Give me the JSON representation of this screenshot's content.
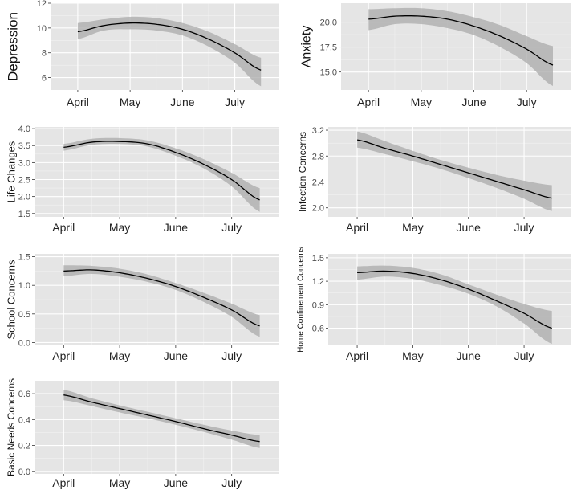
{
  "chart_data": [
    {
      "type": "line",
      "ylabel": "Depression",
      "x_ticks": [
        "April",
        "May",
        "June",
        "July"
      ],
      "y_ticks": [
        6,
        8,
        10,
        12
      ],
      "ylim": [
        5,
        12
      ],
      "grid": true,
      "series": [
        {
          "x": [
            0,
            0.5,
            1,
            1.5,
            2,
            2.5,
            3,
            3.5
          ],
          "y": [
            9.7,
            10.2,
            10.4,
            10.3,
            9.9,
            9.1,
            8.0,
            6.6
          ],
          "lower": [
            9.1,
            9.8,
            9.9,
            9.8,
            9.4,
            8.5,
            7.2,
            5.3
          ],
          "upper": [
            10.4,
            10.7,
            10.9,
            10.8,
            10.4,
            9.7,
            8.7,
            7.6
          ]
        }
      ]
    },
    {
      "type": "line",
      "ylabel": "Anxiety",
      "x_ticks": [
        "April",
        "May",
        "June",
        "July"
      ],
      "y_ticks": [
        15.0,
        17.5,
        20.0
      ],
      "y_tick_labels": [
        "15.0",
        "17.5",
        "20.0"
      ],
      "ylim": [
        13.2,
        21.9
      ],
      "grid": true,
      "series": [
        {
          "x": [
            0,
            0.5,
            1,
            1.5,
            2,
            2.5,
            3,
            3.5
          ],
          "y": [
            20.3,
            20.6,
            20.6,
            20.3,
            19.6,
            18.6,
            17.3,
            15.7
          ],
          "lower": [
            19.2,
            19.8,
            19.8,
            19.4,
            18.7,
            17.5,
            15.9,
            13.6
          ],
          "upper": [
            21.3,
            21.4,
            21.4,
            21.1,
            20.5,
            19.7,
            18.6,
            17.6
          ]
        }
      ]
    },
    {
      "type": "line",
      "ylabel": "Life Changes",
      "x_ticks": [
        "April",
        "May",
        "June",
        "July"
      ],
      "y_ticks": [
        1.5,
        2.0,
        2.5,
        3.0,
        3.5,
        4.0
      ],
      "y_tick_labels": [
        "1.5",
        "2.0",
        "2.5",
        "3.0",
        "3.5",
        "4.0"
      ],
      "ylim": [
        1.4,
        4.05
      ],
      "grid": true,
      "series": [
        {
          "x": [
            0,
            0.5,
            1,
            1.5,
            2,
            2.5,
            3,
            3.5
          ],
          "y": [
            3.45,
            3.6,
            3.62,
            3.55,
            3.3,
            2.95,
            2.5,
            1.9
          ],
          "lower": [
            3.35,
            3.52,
            3.55,
            3.47,
            3.2,
            2.83,
            2.3,
            1.55
          ],
          "upper": [
            3.55,
            3.7,
            3.72,
            3.65,
            3.42,
            3.1,
            2.7,
            2.25
          ]
        }
      ]
    },
    {
      "type": "line",
      "ylabel": "Infection Concerns",
      "x_ticks": [
        "April",
        "May",
        "June",
        "July"
      ],
      "y_ticks": [
        2.0,
        2.4,
        2.8,
        3.2
      ],
      "y_tick_labels": [
        "2.0",
        "2.4",
        "2.8",
        "3.2"
      ],
      "ylim": [
        1.86,
        3.25
      ],
      "grid": true,
      "series": [
        {
          "x": [
            0,
            0.5,
            1,
            1.5,
            2,
            2.5,
            3,
            3.5
          ],
          "y": [
            3.05,
            2.92,
            2.8,
            2.67,
            2.54,
            2.41,
            2.28,
            2.15
          ],
          "lower": [
            2.93,
            2.83,
            2.72,
            2.6,
            2.46,
            2.31,
            2.14,
            1.95
          ],
          "upper": [
            3.18,
            3.03,
            2.88,
            2.74,
            2.62,
            2.51,
            2.42,
            2.35
          ]
        }
      ]
    },
    {
      "type": "line",
      "ylabel": "School Concerns",
      "x_ticks": [
        "April",
        "May",
        "June",
        "July"
      ],
      "y_ticks": [
        0.0,
        0.5,
        1.0,
        1.5
      ],
      "y_tick_labels": [
        "0.0",
        "0.5",
        "1.0",
        "1.5"
      ],
      "ylim": [
        -0.05,
        1.55
      ],
      "grid": true,
      "series": [
        {
          "x": [
            0,
            0.5,
            1,
            1.5,
            2,
            2.5,
            3,
            3.5
          ],
          "y": [
            1.25,
            1.27,
            1.22,
            1.12,
            0.98,
            0.79,
            0.57,
            0.29
          ],
          "lower": [
            1.16,
            1.2,
            1.15,
            1.06,
            0.92,
            0.71,
            0.45,
            0.1
          ],
          "upper": [
            1.35,
            1.34,
            1.29,
            1.19,
            1.04,
            0.87,
            0.68,
            0.48
          ]
        }
      ]
    },
    {
      "type": "line",
      "ylabel": "Home Confinement Concerns",
      "x_ticks": [
        "April",
        "May",
        "June",
        "July"
      ],
      "y_ticks": [
        0.6,
        0.9,
        1.2,
        1.5
      ],
      "y_tick_labels": [
        "0.6",
        "0.9",
        "1.2",
        "1.5"
      ],
      "ylim": [
        0.38,
        1.55
      ],
      "grid": true,
      "series": [
        {
          "x": [
            0,
            0.5,
            1,
            1.5,
            2,
            2.5,
            3,
            3.5
          ],
          "y": [
            1.31,
            1.33,
            1.3,
            1.22,
            1.1,
            0.95,
            0.79,
            0.6
          ],
          "lower": [
            1.22,
            1.26,
            1.23,
            1.15,
            1.04,
            0.88,
            0.66,
            0.4
          ],
          "upper": [
            1.39,
            1.4,
            1.37,
            1.29,
            1.16,
            1.03,
            0.91,
            0.82
          ]
        }
      ]
    },
    {
      "type": "line",
      "ylabel": "Basic Needs Concerns",
      "x_ticks": [
        "April",
        "May",
        "June",
        "July"
      ],
      "y_ticks": [
        0.0,
        0.2,
        0.4,
        0.6
      ],
      "y_tick_labels": [
        "0.0",
        "0.2",
        "0.4",
        "0.6"
      ],
      "ylim": [
        -0.02,
        0.7
      ],
      "grid": true,
      "series": [
        {
          "x": [
            0,
            0.5,
            1,
            1.5,
            2,
            2.5,
            3,
            3.5
          ],
          "y": [
            0.59,
            0.535,
            0.485,
            0.435,
            0.385,
            0.33,
            0.28,
            0.23
          ],
          "lower": [
            0.55,
            0.505,
            0.455,
            0.41,
            0.36,
            0.305,
            0.245,
            0.18
          ],
          "upper": [
            0.63,
            0.565,
            0.51,
            0.46,
            0.41,
            0.36,
            0.315,
            0.28
          ]
        }
      ]
    }
  ],
  "colors": {
    "panel_background": "#e5e5e5",
    "grid_major": "#ffffff",
    "ribbon": "#a9a9a9",
    "line": "#000000",
    "tick_text": "#4d4d4d"
  }
}
